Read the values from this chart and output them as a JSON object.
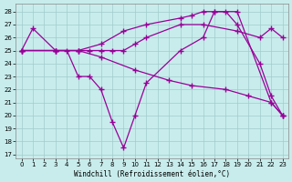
{
  "xlabel": "Windchill (Refroidissement éolien,°C)",
  "bg_color": "#c8ecec",
  "grid_color": "#a0cccc",
  "line_color": "#990099",
  "xlim_min": -0.5,
  "xlim_max": 23.5,
  "ylim_min": 16.7,
  "ylim_max": 28.6,
  "yticks": [
    17,
    18,
    19,
    20,
    21,
    22,
    23,
    24,
    25,
    26,
    27,
    28
  ],
  "xticks": [
    0,
    1,
    2,
    3,
    4,
    5,
    6,
    7,
    8,
    9,
    10,
    11,
    12,
    13,
    14,
    15,
    16,
    17,
    18,
    19,
    20,
    21,
    22,
    23
  ],
  "series": [
    {
      "x": [
        0,
        1,
        3,
        5,
        7,
        10,
        13,
        15,
        18,
        20,
        22,
        23
      ],
      "y": [
        25,
        26.7,
        25,
        25,
        24.5,
        23.5,
        22.7,
        22.3,
        22.0,
        21.5,
        21.0,
        20.0
      ]
    },
    {
      "x": [
        0,
        3,
        5,
        6,
        7,
        8,
        9,
        10,
        11,
        14,
        16,
        19,
        21,
        22,
        23
      ],
      "y": [
        25,
        25,
        25,
        25,
        25,
        25,
        25,
        25.5,
        26,
        27,
        27,
        26.5,
        26,
        26.7,
        26
      ]
    },
    {
      "x": [
        0,
        3,
        4,
        5,
        6,
        7,
        8,
        9,
        10,
        11,
        14,
        16,
        17,
        19,
        22,
        23
      ],
      "y": [
        25,
        25,
        25,
        23,
        23,
        22,
        19.5,
        17.5,
        20,
        22.5,
        25,
        26,
        28,
        28,
        21,
        20
      ]
    },
    {
      "x": [
        0,
        3,
        5,
        7,
        9,
        11,
        14,
        15,
        16,
        17,
        18,
        19,
        21,
        22,
        23
      ],
      "y": [
        25,
        25,
        25,
        25.5,
        26.5,
        27,
        27.5,
        27.7,
        28,
        28,
        28,
        27,
        24,
        21.5,
        20
      ]
    }
  ]
}
